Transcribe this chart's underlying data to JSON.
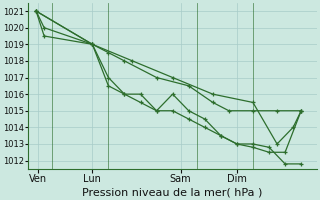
{
  "bg_color": "#cce8e0",
  "grid_color": "#a8ccc8",
  "line_color": "#2d6e2d",
  "marker_color": "#2d6e2d",
  "xlabel": "Pression niveau de la mer( hPa )",
  "xlabel_fontsize": 8,
  "ylim": [
    1011.5,
    1021.5
  ],
  "yticks": [
    1012,
    1013,
    1014,
    1015,
    1016,
    1017,
    1018,
    1019,
    1020,
    1021
  ],
  "xtick_labels": [
    "Ven",
    "Lun",
    "Sam",
    "Dim"
  ],
  "xtick_positions": [
    0.5,
    14,
    36,
    50
  ],
  "vline_positions": [
    4,
    18,
    40,
    54
  ],
  "lines": [
    {
      "x": [
        0,
        2,
        14,
        18,
        22,
        26,
        30,
        34,
        38,
        42,
        46,
        50,
        54,
        58,
        62,
        66
      ],
      "y": [
        1021,
        1020,
        1019,
        1017,
        1016,
        1016,
        1015,
        1015,
        1014.5,
        1014,
        1013.5,
        1013,
        1013,
        1012.8,
        1011.8,
        1011.8
      ]
    },
    {
      "x": [
        0,
        2,
        14,
        18,
        22,
        26,
        30,
        34,
        38,
        42,
        46,
        50,
        54,
        58,
        62,
        66
      ],
      "y": [
        1021,
        1019.5,
        1019,
        1016.5,
        1016,
        1015.5,
        1015,
        1016,
        1015,
        1014.5,
        1013.5,
        1013,
        1012.8,
        1012.5,
        1012.5,
        1015
      ]
    },
    {
      "x": [
        0,
        14,
        18,
        22,
        30,
        38,
        44,
        48,
        54,
        60,
        66
      ],
      "y": [
        1021,
        1019,
        1018.5,
        1018,
        1017,
        1016.5,
        1015.5,
        1015,
        1015,
        1015,
        1015
      ]
    },
    {
      "x": [
        0,
        14,
        24,
        34,
        44,
        54,
        60,
        64,
        66
      ],
      "y": [
        1021,
        1019,
        1018,
        1017,
        1016,
        1015.5,
        1013,
        1014,
        1015
      ]
    }
  ],
  "xlim": [
    -2,
    70
  ]
}
